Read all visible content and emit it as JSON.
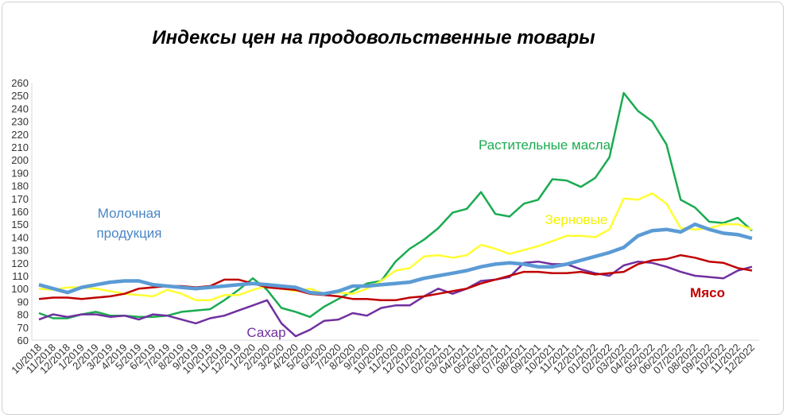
{
  "chart_data": {
    "type": "line",
    "title": "Индексы цен на продовольственные  товары",
    "categories": [
      "10/2018",
      "11/2018",
      "12/2018",
      "1/2019",
      "2/2019",
      "3/2019",
      "4/2019",
      "5/2019",
      "6/2019",
      "7/2019",
      "8/2019",
      "9/2019",
      "10/2019",
      "11/2019",
      "12/2019",
      "1/2020",
      "2/2020",
      "3/2020",
      "4/2020",
      "5/2020",
      "6/2020",
      "7/2020",
      "8/2020",
      "9/2020",
      "10/2020",
      "11/2020",
      "12/2020",
      "01/2021",
      "02/2021",
      "03/2021",
      "04/2021",
      "05/2021",
      "06/2021",
      "07/2021",
      "08/2021",
      "09/2021",
      "10/2021",
      "11/2021",
      "12/2021",
      "01/2022",
      "02/2022",
      "03/2022",
      "04/2022",
      "05/2022",
      "06/2022",
      "07/2022",
      "08/2022",
      "09/2022",
      "10/2022",
      "11/2022",
      "12/2022"
    ],
    "series": [
      {
        "name": "Молочная продукция",
        "color": "#5b9bd5",
        "values": [
          103,
          100,
          97,
          101,
          103,
          105,
          106,
          106,
          103,
          102,
          101,
          100,
          101,
          102,
          103,
          104,
          103,
          102,
          101,
          97,
          96,
          98,
          102,
          102,
          103,
          104,
          105,
          108,
          110,
          112,
          114,
          117,
          119,
          120,
          119,
          117,
          117,
          119,
          122,
          125,
          128,
          132,
          141,
          145,
          146,
          144,
          150,
          146,
          143,
          142,
          139
        ]
      },
      {
        "name": "Растительные масла",
        "color": "#1aab50",
        "values": [
          81,
          77,
          77,
          80,
          82,
          79,
          79,
          78,
          78,
          79,
          82,
          83,
          84,
          91,
          99,
          108,
          99,
          85,
          82,
          78,
          86,
          92,
          98,
          104,
          106,
          121,
          131,
          138,
          147,
          159,
          162,
          175,
          158,
          156,
          166,
          169,
          185,
          184,
          179,
          186,
          202,
          252,
          238,
          230,
          212,
          169,
          163,
          152,
          151,
          155,
          145
        ]
      },
      {
        "name": "Зерновые",
        "color": "#ffff33",
        "values": [
          100,
          99,
          101,
          101,
          100,
          98,
          96,
          95,
          94,
          99,
          96,
          91,
          91,
          95,
          95,
          99,
          102,
          100,
          98,
          100,
          96,
          97,
          96,
          100,
          106,
          114,
          116,
          125,
          126,
          124,
          126,
          134,
          131,
          127,
          130,
          133,
          137,
          141,
          141,
          140,
          146,
          170,
          169,
          174,
          166,
          147,
          146,
          147,
          150,
          150,
          146
        ]
      },
      {
        "name": "Мясо",
        "color": "#c00000",
        "values": [
          92,
          93,
          93,
          92,
          93,
          94,
          96,
          100,
          101,
          102,
          102,
          101,
          102,
          107,
          107,
          104,
          101,
          100,
          99,
          96,
          95,
          94,
          92,
          92,
          91,
          91,
          93,
          94,
          96,
          98,
          100,
          104,
          107,
          110,
          113,
          113,
          112,
          112,
          113,
          111,
          112,
          113,
          119,
          122,
          123,
          126,
          124,
          121,
          120,
          116,
          114
        ]
      },
      {
        "name": "Сахар",
        "color": "#7030a0",
        "values": [
          76,
          80,
          78,
          80,
          80,
          78,
          79,
          76,
          80,
          79,
          76,
          73,
          77,
          79,
          83,
          87,
          91,
          73,
          63,
          68,
          75,
          76,
          81,
          79,
          85,
          87,
          87,
          94,
          100,
          96,
          100,
          106,
          107,
          109,
          120,
          121,
          119,
          119,
          115,
          112,
          110,
          118,
          121,
          120,
          117,
          113,
          110,
          109,
          108,
          114,
          117
        ]
      }
    ],
    "ylim": [
      60,
      260
    ],
    "yticks": [
      60,
      70,
      80,
      90,
      100,
      110,
      120,
      130,
      140,
      150,
      160,
      170,
      180,
      190,
      200,
      210,
      220,
      230,
      240,
      250,
      260
    ],
    "grid": false
  }
}
